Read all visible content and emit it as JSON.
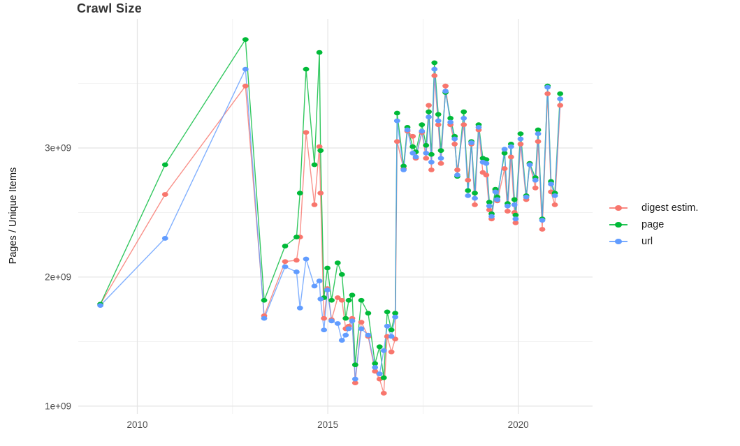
{
  "page_title": "Crawl Size",
  "chart_data": {
    "type": "line",
    "title": "Crawl Size",
    "ylabel": "Pages / Unique Items",
    "xlabel": "",
    "grid": true,
    "legend_position": "right",
    "background_color": "#FFFFFF",
    "major_grid_color": "#E4E4E4",
    "minor_grid_color": "#EFEFEF",
    "axis_text_color": "#4D4D4D",
    "xlim": [
      2008.45,
      2021.95
    ],
    "ylim_e9": [
      0.94,
      4.0
    ],
    "x_major_ticks": [
      {
        "value": 2010,
        "label": "2010"
      },
      {
        "value": 2015,
        "label": "2015"
      },
      {
        "value": 2020,
        "label": "2020"
      }
    ],
    "x_minor_gridlines": [
      2012.5,
      2017.5
    ],
    "y_major_ticks_e9": [
      {
        "value": 1,
        "label": "1e+09"
      },
      {
        "value": 2,
        "label": "2e+09"
      },
      {
        "value": 3,
        "label": "3e+09"
      }
    ],
    "y_minor_gridlines_e9": [
      1.5,
      2.5,
      3.5
    ],
    "unit": "1e9 pages",
    "x": [
      2009.03,
      2010.73,
      2012.84,
      2013.33,
      2013.88,
      2014.18,
      2014.27,
      2014.43,
      2014.65,
      2014.78,
      2014.81,
      2014.9,
      2014.99,
      2015.1,
      2015.26,
      2015.37,
      2015.47,
      2015.55,
      2015.64,
      2015.72,
      2015.88,
      2016.06,
      2016.24,
      2016.36,
      2016.47,
      2016.56,
      2016.67,
      2016.77,
      2016.82,
      2016.99,
      2017.09,
      2017.23,
      2017.31,
      2017.47,
      2017.58,
      2017.65,
      2017.72,
      2017.8,
      2017.9,
      2017.97,
      2018.09,
      2018.22,
      2018.33,
      2018.4,
      2018.57,
      2018.68,
      2018.77,
      2018.86,
      2018.96,
      2019.07,
      2019.16,
      2019.24,
      2019.3,
      2019.4,
      2019.45,
      2019.64,
      2019.72,
      2019.81,
      2019.9,
      2019.93,
      2020.06,
      2020.21,
      2020.3,
      2020.45,
      2020.52,
      2020.63,
      2020.77,
      2020.86,
      2020.96,
      2021.1
    ],
    "series": [
      {
        "name": "digest estim.",
        "color": "#F8766D",
        "values_e9": [
          1.79,
          2.64,
          3.48,
          1.7,
          2.12,
          2.13,
          2.31,
          3.12,
          2.56,
          3.01,
          2.65,
          1.68,
          1.91,
          1.67,
          1.84,
          1.82,
          1.6,
          1.62,
          1.68,
          1.18,
          1.65,
          1.54,
          1.27,
          1.21,
          1.1,
          1.54,
          1.42,
          1.52,
          3.05,
          2.84,
          3.13,
          3.09,
          2.92,
          3.12,
          2.92,
          3.33,
          2.83,
          3.56,
          3.18,
          2.88,
          3.48,
          3.18,
          3.03,
          2.83,
          3.18,
          2.75,
          3.03,
          2.56,
          3.14,
          2.81,
          2.79,
          2.52,
          2.45,
          2.67,
          2.59,
          2.84,
          2.51,
          2.93,
          2.5,
          2.42,
          3.03,
          2.6,
          2.88,
          2.69,
          3.05,
          2.37,
          3.42,
          2.66,
          2.56,
          3.33
        ]
      },
      {
        "name": "page",
        "color": "#00BA38",
        "values_e9": [
          1.79,
          2.87,
          3.84,
          1.82,
          2.24,
          2.31,
          2.65,
          3.61,
          2.87,
          3.74,
          2.98,
          1.84,
          2.07,
          1.82,
          2.11,
          2.02,
          1.68,
          1.82,
          1.86,
          1.32,
          1.82,
          1.72,
          1.33,
          1.46,
          1.22,
          1.73,
          1.59,
          1.72,
          3.27,
          2.86,
          3.16,
          3.01,
          2.97,
          3.18,
          3.02,
          3.28,
          2.95,
          3.66,
          3.26,
          2.98,
          3.43,
          3.23,
          3.09,
          2.78,
          3.28,
          2.67,
          3.05,
          2.65,
          3.18,
          2.92,
          2.91,
          2.58,
          2.49,
          2.68,
          2.62,
          2.96,
          2.57,
          3.03,
          2.6,
          2.48,
          3.11,
          2.63,
          2.88,
          2.77,
          3.14,
          2.45,
          3.48,
          2.74,
          2.65,
          3.42
        ]
      },
      {
        "name": "url",
        "color": "#619CFF",
        "values_e9": [
          1.78,
          2.3,
          3.61,
          1.68,
          2.08,
          2.04,
          1.76,
          2.14,
          1.93,
          1.97,
          1.83,
          1.59,
          1.9,
          1.66,
          1.64,
          1.51,
          1.55,
          1.6,
          1.66,
          1.21,
          1.6,
          1.55,
          1.3,
          1.25,
          1.43,
          1.62,
          1.54,
          1.69,
          3.21,
          2.83,
          3.14,
          2.96,
          2.93,
          3.13,
          2.96,
          3.24,
          2.89,
          3.61,
          3.21,
          2.92,
          3.44,
          3.2,
          3.07,
          2.79,
          3.23,
          2.63,
          3.04,
          2.61,
          3.16,
          2.89,
          2.88,
          2.55,
          2.47,
          2.66,
          2.6,
          2.99,
          2.55,
          3.01,
          2.56,
          2.45,
          3.07,
          2.62,
          2.87,
          2.75,
          3.11,
          2.44,
          3.47,
          2.72,
          2.63,
          3.38
        ]
      }
    ]
  }
}
